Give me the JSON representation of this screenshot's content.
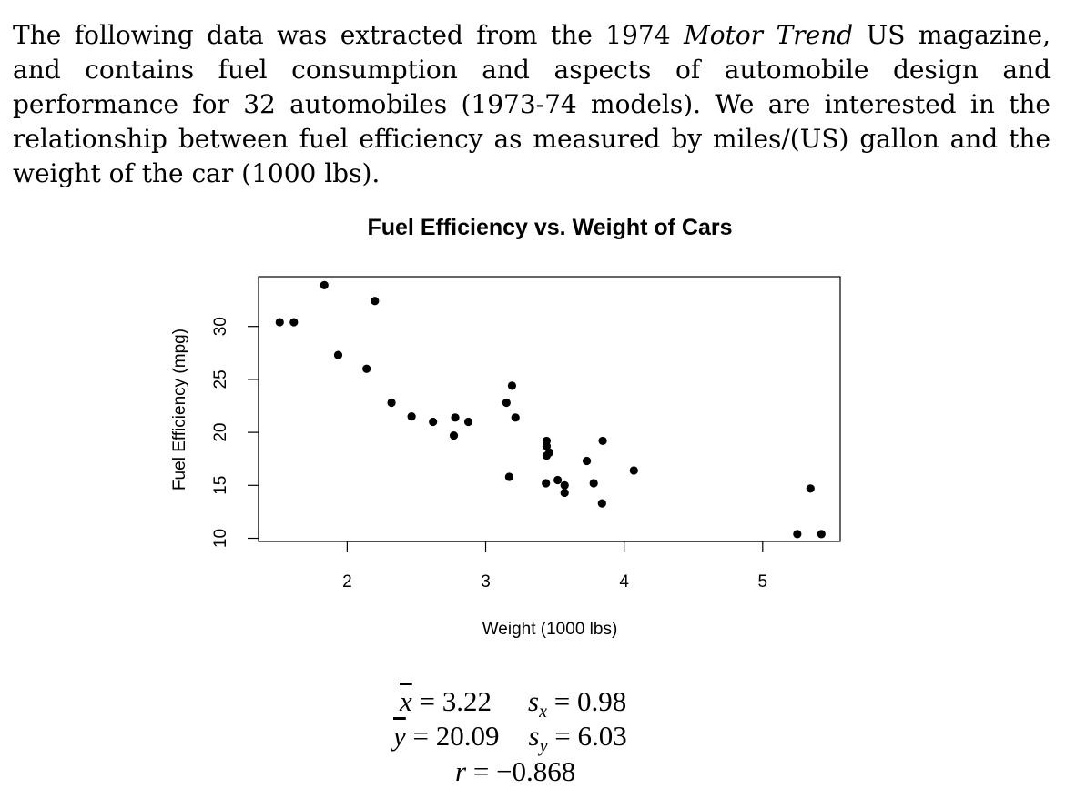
{
  "intro": {
    "before_italic": "The following data was extracted from the 1974 ",
    "italic": "Motor Trend",
    "after_italic": " US magazine, and contains fuel consumption and aspects of automobile design and performance for 32 automobiles (1973-74 models).  We are interested in the relationship between fuel efficiency as measured by miles/(US) gallon and the weight of the car (1000 lbs)."
  },
  "stats": {
    "xbar_value": "3.22",
    "sx_value": "0.98",
    "ybar_value": "20.09",
    "sy_value": "6.03",
    "r_value": "−0.868"
  },
  "chart_data": {
    "type": "scatter",
    "title": "Fuel Efficiency vs. Weight of Cars",
    "xlabel": "Weight (1000 lbs)",
    "ylabel": "Fuel Efficiency (mpg)",
    "xlim": [
      1.36,
      5.56
    ],
    "ylim": [
      9.7,
      34.7
    ],
    "xticks": [
      2,
      3,
      4,
      5
    ],
    "yticks": [
      10,
      15,
      20,
      25,
      30
    ],
    "grid": false,
    "legend": "none",
    "point_color": "#000000",
    "points": [
      {
        "x": 2.62,
        "y": 21.0
      },
      {
        "x": 2.875,
        "y": 21.0
      },
      {
        "x": 2.32,
        "y": 22.8
      },
      {
        "x": 3.215,
        "y": 21.4
      },
      {
        "x": 3.44,
        "y": 18.7
      },
      {
        "x": 3.46,
        "y": 18.1
      },
      {
        "x": 3.57,
        "y": 14.3
      },
      {
        "x": 3.19,
        "y": 24.4
      },
      {
        "x": 3.15,
        "y": 22.8
      },
      {
        "x": 3.44,
        "y": 19.2
      },
      {
        "x": 3.44,
        "y": 17.8
      },
      {
        "x": 4.07,
        "y": 16.4
      },
      {
        "x": 3.73,
        "y": 17.3
      },
      {
        "x": 3.78,
        "y": 15.2
      },
      {
        "x": 5.25,
        "y": 10.4
      },
      {
        "x": 5.424,
        "y": 10.4
      },
      {
        "x": 5.345,
        "y": 14.7
      },
      {
        "x": 2.2,
        "y": 32.4
      },
      {
        "x": 1.615,
        "y": 30.4
      },
      {
        "x": 1.835,
        "y": 33.9
      },
      {
        "x": 2.465,
        "y": 21.5
      },
      {
        "x": 3.52,
        "y": 15.5
      },
      {
        "x": 3.435,
        "y": 15.2
      },
      {
        "x": 3.84,
        "y": 13.3
      },
      {
        "x": 3.845,
        "y": 19.2
      },
      {
        "x": 1.935,
        "y": 27.3
      },
      {
        "x": 2.14,
        "y": 26.0
      },
      {
        "x": 1.513,
        "y": 30.4
      },
      {
        "x": 3.17,
        "y": 15.8
      },
      {
        "x": 2.77,
        "y": 19.7
      },
      {
        "x": 3.57,
        "y": 15.0
      },
      {
        "x": 2.78,
        "y": 21.4
      }
    ]
  }
}
